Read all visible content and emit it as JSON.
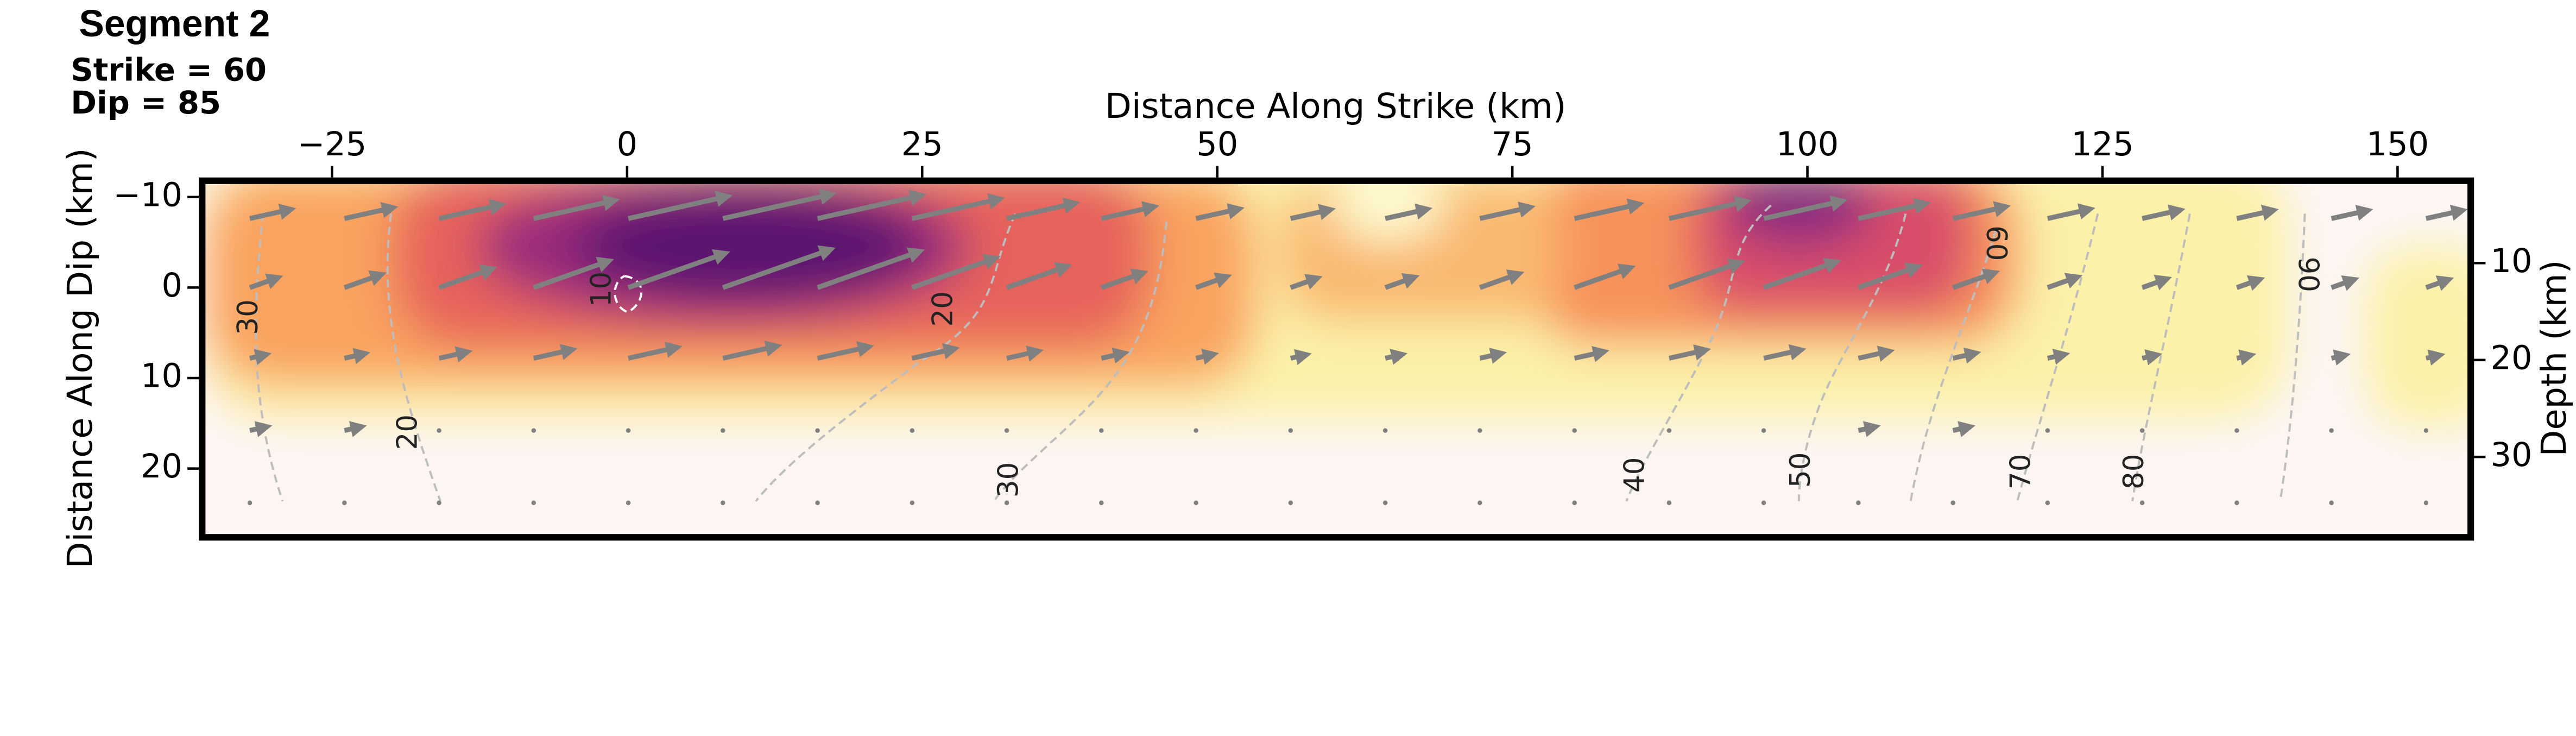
{
  "chart_data": {
    "type": "heatmap",
    "title": "Segment 2",
    "subtitle": [
      "Strike = 60",
      "Dip = 85"
    ],
    "xlabel": "Distance Along Strike (km)",
    "ylabel": "Distance Along Dip (km)",
    "y2label": "Depth (km)",
    "xlim": [
      -36,
      156.2
    ],
    "xticks": [
      {
        "value": -25,
        "label": "−25"
      },
      0,
      25,
      50,
      75,
      100,
      125,
      150
    ],
    "ylim": [
      -11.8,
      27.6
    ],
    "yticks": [
      {
        "value": -10,
        "label": "−10"
      },
      0,
      10,
      20
    ],
    "y2lim": [
      1.5,
      38.3
    ],
    "y2ticks": [
      10,
      20,
      30
    ],
    "contour_labels": [
      30,
      20,
      10,
      20,
      30,
      40,
      50,
      60,
      70,
      80,
      90
    ]
  }
}
